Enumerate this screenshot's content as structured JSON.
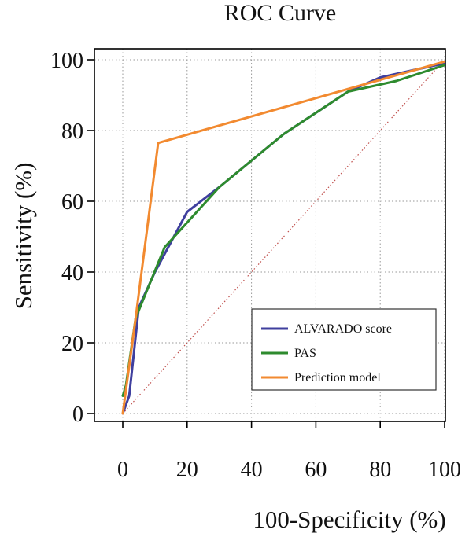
{
  "chart_data": {
    "type": "line",
    "title": "ROC Curve",
    "xlabel": "100-Specificity (%)",
    "ylabel": "Sensitivity (%)",
    "xlim": [
      0,
      100
    ],
    "ylim": [
      0,
      100
    ],
    "xticks": [
      0,
      20,
      40,
      60,
      80,
      100
    ],
    "yticks": [
      0,
      20,
      40,
      60,
      80,
      100
    ],
    "grid": true,
    "legend_position": "bottom-right",
    "reference_line": {
      "x": [
        0,
        100
      ],
      "y": [
        0,
        100
      ],
      "color": "#c0504d",
      "style": "dotted"
    },
    "series": [
      {
        "name": "ALVARADO score",
        "color": "#3f3f9e",
        "x": [
          0,
          2,
          5,
          10,
          20,
          30,
          50,
          70,
          80,
          90,
          100
        ],
        "y": [
          0,
          5,
          30,
          40,
          57,
          64,
          79,
          91,
          95,
          97,
          99
        ]
      },
      {
        "name": "PAS",
        "color": "#2e8b2e",
        "x": [
          0,
          1,
          4,
          13,
          30,
          50,
          70,
          85,
          100
        ],
        "y": [
          5,
          8,
          27,
          47,
          64,
          79,
          91,
          94,
          98.5
        ]
      },
      {
        "name": "Prediction model",
        "color": "#f28a30",
        "x": [
          0,
          4,
          11,
          100
        ],
        "y": [
          0,
          27,
          76.5,
          99.5
        ]
      }
    ]
  }
}
